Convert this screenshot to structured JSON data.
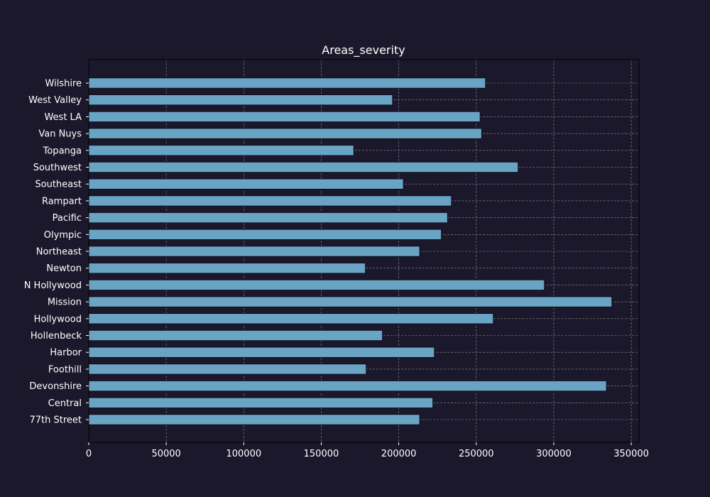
{
  "chart_data": {
    "type": "bar",
    "orientation": "horizontal",
    "title": "Areas_severity",
    "xlabel": "",
    "ylabel": "",
    "categories": [
      "77th Street",
      "Central",
      "Devonshire",
      "Foothill",
      "Harbor",
      "Hollenbeck",
      "Hollywood",
      "Mission",
      "N Hollywood",
      "Newton",
      "Northeast",
      "Olympic",
      "Pacific",
      "Rampart",
      "Southeast",
      "Southwest",
      "Topanga",
      "Van Nuys",
      "West LA",
      "West Valley",
      "Wilshire"
    ],
    "values": [
      213500,
      222000,
      334000,
      179000,
      223000,
      189500,
      261000,
      337500,
      294000,
      178500,
      213500,
      227500,
      231500,
      234000,
      203000,
      277000,
      171000,
      253500,
      252500,
      196000,
      256000
    ],
    "xlim": [
      0,
      355000
    ],
    "xticks": [
      0,
      50000,
      100000,
      150000,
      200000,
      250000,
      300000,
      350000
    ],
    "grid": true,
    "bar_color": "#6aa4c4",
    "background_color": "#1c182b"
  }
}
